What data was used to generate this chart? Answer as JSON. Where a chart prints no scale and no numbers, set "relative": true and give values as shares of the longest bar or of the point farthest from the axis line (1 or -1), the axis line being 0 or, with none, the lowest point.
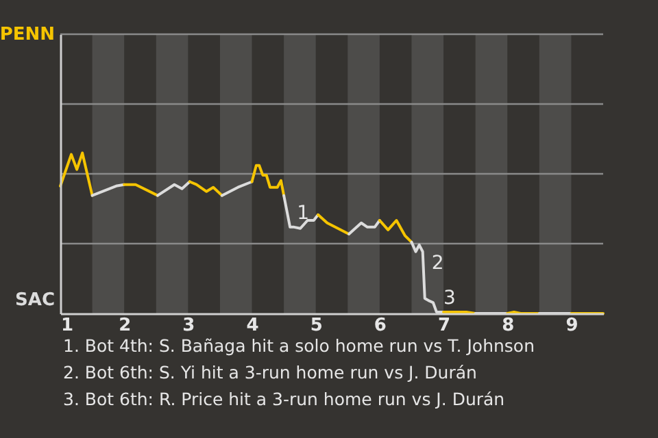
{
  "chart_data": {
    "type": "line",
    "relative": true,
    "series": [
      {
        "color": "#f5c400",
        "x": [
          1.0,
          1.172,
          1.259,
          1.345,
          1.5
        ],
        "values": [
          0.794,
          0.991,
          0.897,
          1,
          0.735
        ]
      },
      {
        "color": "#dcdcdc",
        "x": [
          1.5,
          1.875,
          2.0
        ],
        "values": [
          0.735,
          0.794,
          0.803
        ]
      },
      {
        "color": "#f5c400",
        "x": [
          2.0,
          2.179,
          2.524
        ],
        "values": [
          0.803,
          0.803,
          0.735
        ]
      },
      {
        "color": "#dcdcdc",
        "x": [
          2.524,
          2.786,
          2.905,
          3.026
        ],
        "values": [
          0.735,
          0.803,
          0.777,
          0.821
        ]
      },
      {
        "color": "#f5c400",
        "x": [
          3.026,
          3.132,
          3.289,
          3.395,
          3.531
        ],
        "values": [
          0.821,
          0.803,
          0.76,
          0.786,
          0.735
        ]
      },
      {
        "color": "#dcdcdc",
        "x": [
          3.531,
          3.781,
          4.0
        ],
        "values": [
          0.735,
          0.786,
          0.821
        ]
      },
      {
        "color": "#f5c400",
        "x": [
          4.0,
          4.068,
          4.114,
          4.17,
          4.227,
          4.284,
          4.398,
          4.455,
          4.5
        ],
        "values": [
          0.821,
          0.922,
          0.922,
          0.862,
          0.862,
          0.786,
          0.786,
          0.828,
          0.735
        ]
      },
      {
        "color": "#dcdcdc",
        "x": [
          4.5,
          4.597,
          4.661,
          4.758,
          4.871,
          4.968,
          5.036
        ],
        "values": [
          0.735,
          0.538,
          0.538,
          0.53,
          0.58,
          0.58,
          0.615
        ]
      },
      {
        "color": "#f5c400",
        "x": [
          5.036,
          5.179,
          5.519
        ],
        "values": [
          0.615,
          0.564,
          0.495
        ]
      },
      {
        "color": "#dcdcdc",
        "x": [
          5.519,
          5.712,
          5.808,
          5.923,
          6.0
        ],
        "values": [
          0.495,
          0.564,
          0.538,
          0.538,
          0.58
        ]
      },
      {
        "color": "#f5c400",
        "x": [
          6.0,
          6.132,
          6.263,
          6.395,
          6.5
        ],
        "values": [
          0.58,
          0.521,
          0.58,
          0.486,
          0.444
        ]
      },
      {
        "color": "#dcdcdc",
        "x": [
          6.5,
          6.565,
          6.62,
          6.674,
          6.707,
          6.783,
          6.837,
          6.891,
          7.0
        ],
        "values": [
          0.444,
          0.385,
          0.427,
          0.385,
          0.094,
          0.077,
          0.068,
          0.009,
          0.009
        ]
      },
      {
        "color": "#f5c400",
        "x": [
          7.0,
          7.357,
          7.5
        ],
        "values": [
          0.009,
          0.009,
          0
        ]
      },
      {
        "color": "#dcdcdc",
        "x": [
          7.5,
          8.0
        ],
        "values": [
          0,
          0
        ]
      },
      {
        "color": "#f5c400",
        "x": [
          8.0,
          8.104,
          8.208,
          8.5
        ],
        "values": [
          0,
          0.009,
          0,
          0
        ]
      },
      {
        "color": "#dcdcdc",
        "x": [
          8.5,
          9.0
        ],
        "values": [
          0,
          0
        ]
      },
      {
        "color": "#f5c400",
        "x": [
          9.0,
          9.5
        ],
        "values": [
          0,
          0
        ]
      }
    ],
    "xlim": [
      1,
      9.5
    ],
    "xticks": [
      1,
      2,
      3,
      4,
      5,
      6,
      7,
      8,
      9
    ],
    "ref_lines": [
      {
        "axis": "y",
        "value": 0.435,
        "color": "#8a8a8a"
      },
      {
        "axis": "y",
        "value": 0.87,
        "color": "#8a8a8a"
      },
      {
        "axis": "y",
        "value": 1.305,
        "color": "#8a8a8a"
      },
      {
        "axis": "y",
        "value": 1.74,
        "color": "#8a8a8a"
      }
    ],
    "bands": [
      {
        "axis": "x",
        "from": 1.5,
        "to": 2,
        "color": "#4d4c4a"
      },
      {
        "axis": "x",
        "from": 2.5,
        "to": 3,
        "color": "#4d4c4a"
      },
      {
        "axis": "x",
        "from": 3.5,
        "to": 4,
        "color": "#4d4c4a"
      },
      {
        "axis": "x",
        "from": 4.5,
        "to": 5,
        "color": "#4d4c4a"
      },
      {
        "axis": "x",
        "from": 5.5,
        "to": 6,
        "color": "#4d4c4a"
      },
      {
        "axis": "x",
        "from": 6.5,
        "to": 7,
        "color": "#4d4c4a"
      },
      {
        "axis": "x",
        "from": 7.5,
        "to": 8,
        "color": "#4d4c4a"
      },
      {
        "axis": "x",
        "from": 8.5,
        "to": 9,
        "color": "#4d4c4a"
      }
    ],
    "annotations": [
      "PENN",
      "SAC",
      {
        "text": "1",
        "x": 4.597,
        "y": 0.538
      },
      {
        "text": "2",
        "x": 6.707,
        "y": 0.226
      },
      {
        "text": "3",
        "x": 6.891,
        "y": 0.009
      },
      "1. Bot 4th: S. Bañaga hit a solo home run vs T. Johnson",
      "2. Bot 6th: S. Yi hit a 3-run home run vs J. Durán",
      "3. Bot 6th: R. Price hit a 3-run home run vs J. Durán"
    ]
  }
}
